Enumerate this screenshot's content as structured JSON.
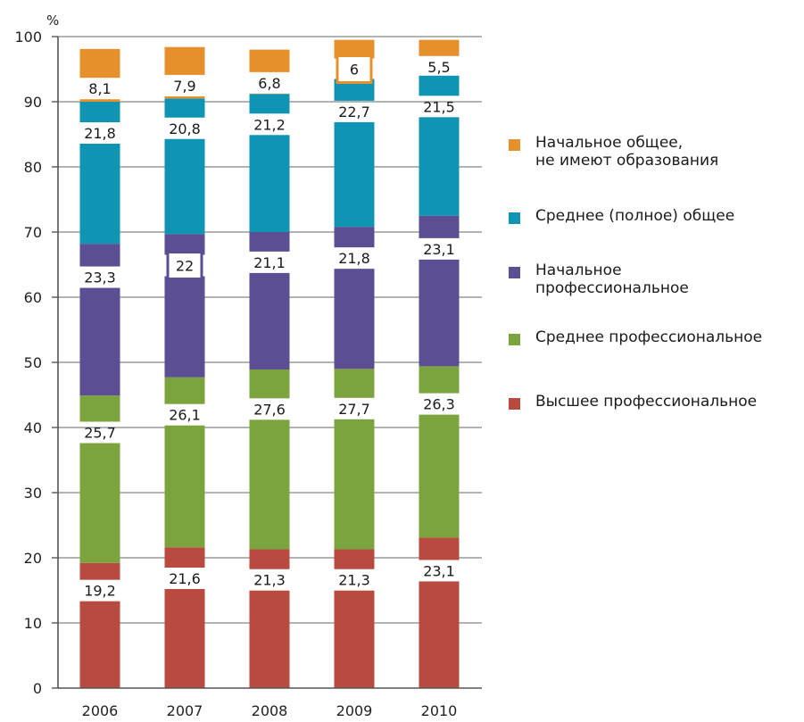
{
  "chart_data": {
    "type": "bar",
    "stacked": true,
    "ylabel": "%",
    "ylim": [
      0,
      100
    ],
    "yticks": [
      0,
      10,
      20,
      30,
      40,
      50,
      60,
      70,
      80,
      90,
      100
    ],
    "grid": true,
    "legend_position": "right",
    "categories": [
      "2006",
      "2007",
      "2008",
      "2009",
      "2010"
    ],
    "series": [
      {
        "name": "Высшее профессиональное",
        "color": "#b84a3f",
        "values": [
          19.2,
          21.6,
          21.3,
          21.3,
          23.1
        ],
        "labels": [
          "19,2",
          "21,6",
          "21,3",
          "21,3",
          "23,1"
        ]
      },
      {
        "name": "Среднее профессиональное",
        "color": "#7ca43e",
        "values": [
          25.7,
          26.1,
          27.6,
          27.7,
          26.3
        ],
        "labels": [
          "25,7",
          "26,1",
          "27,6",
          "27,7",
          "26,3"
        ]
      },
      {
        "name": "Начальное\nпрофессиональное",
        "color": "#5b4e92",
        "values": [
          23.3,
          22.0,
          21.1,
          21.8,
          23.1
        ],
        "labels": [
          "23,3",
          "22",
          "21,1",
          "21,8",
          "23,1"
        ]
      },
      {
        "name": "Среднее (полное) общее",
        "color": "#0f94b4",
        "values": [
          21.8,
          20.8,
          21.2,
          22.7,
          21.5
        ],
        "labels": [
          "21,8",
          "20,8",
          "21,2",
          "22,7",
          "21,5"
        ]
      },
      {
        "name": "Начальное общее,\nне имеют образования",
        "color": "#e6902d",
        "values": [
          8.1,
          7.9,
          6.8,
          6.0,
          5.5
        ],
        "labels": [
          "8,1",
          "7,9",
          "6,8",
          "6",
          "5,5"
        ]
      }
    ],
    "boxed_labels": [
      {
        "series": 2,
        "category": 1
      },
      {
        "series": 4,
        "category": 3
      }
    ]
  },
  "legend_order": [
    4,
    3,
    2,
    1,
    0
  ]
}
